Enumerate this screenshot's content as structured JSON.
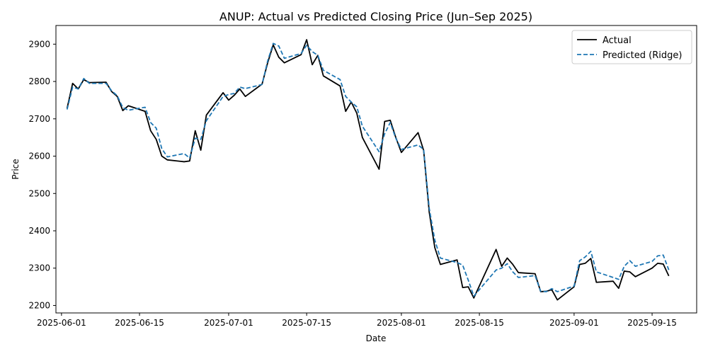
{
  "chart_data": {
    "type": "line",
    "title": "ANUP: Actual vs Predicted Closing Price (Jun–Sep 2025)",
    "xlabel": "Date",
    "ylabel": "Price",
    "xlim": [
      "2025-05-31",
      "2025-09-23"
    ],
    "ylim": [
      2180,
      2950
    ],
    "x_ticks": [
      "2025-06-01",
      "2025-06-15",
      "2025-07-01",
      "2025-07-15",
      "2025-08-01",
      "2025-08-15",
      "2025-09-01",
      "2025-09-15"
    ],
    "y_ticks": [
      2200,
      2300,
      2400,
      2500,
      2600,
      2700,
      2800,
      2900
    ],
    "grid": false,
    "legend_position": "top-right",
    "x": [
      "2025-06-02",
      "2025-06-03",
      "2025-06-04",
      "2025-06-05",
      "2025-06-06",
      "2025-06-09",
      "2025-06-10",
      "2025-06-11",
      "2025-06-12",
      "2025-06-13",
      "2025-06-16",
      "2025-06-17",
      "2025-06-18",
      "2025-06-19",
      "2025-06-20",
      "2025-06-23",
      "2025-06-24",
      "2025-06-25",
      "2025-06-26",
      "2025-06-27",
      "2025-06-30",
      "2025-07-01",
      "2025-07-02",
      "2025-07-03",
      "2025-07-04",
      "2025-07-07",
      "2025-07-08",
      "2025-07-09",
      "2025-07-10",
      "2025-07-11",
      "2025-07-14",
      "2025-07-15",
      "2025-07-16",
      "2025-07-17",
      "2025-07-18",
      "2025-07-21",
      "2025-07-22",
      "2025-07-23",
      "2025-07-24",
      "2025-07-25",
      "2025-07-28",
      "2025-07-29",
      "2025-07-30",
      "2025-07-31",
      "2025-08-01",
      "2025-08-04",
      "2025-08-05",
      "2025-08-06",
      "2025-08-07",
      "2025-08-08",
      "2025-08-11",
      "2025-08-12",
      "2025-08-13",
      "2025-08-14",
      "2025-08-18",
      "2025-08-19",
      "2025-08-20",
      "2025-08-21",
      "2025-08-22",
      "2025-08-25",
      "2025-08-26",
      "2025-08-27",
      "2025-08-28",
      "2025-08-29",
      "2025-09-01",
      "2025-09-02",
      "2025-09-03",
      "2025-09-04",
      "2025-09-05",
      "2025-09-08",
      "2025-09-09",
      "2025-09-10",
      "2025-09-11",
      "2025-09-12",
      "2025-09-15",
      "2025-09-16",
      "2025-09-17",
      "2025-09-18"
    ],
    "series": [
      {
        "name": "Actual",
        "color": "#000000",
        "style": "solid",
        "values": [
          2728,
          2795,
          2780,
          2805,
          2797,
          2798,
          2773,
          2760,
          2722,
          2735,
          2720,
          2668,
          2645,
          2600,
          2590,
          2585,
          2587,
          2668,
          2616,
          2710,
          2770,
          2750,
          2763,
          2780,
          2760,
          2793,
          2850,
          2898,
          2865,
          2850,
          2872,
          2912,
          2845,
          2870,
          2815,
          2788,
          2720,
          2745,
          2715,
          2650,
          2565,
          2693,
          2696,
          2650,
          2610,
          2663,
          2615,
          2450,
          2355,
          2310,
          2322,
          2248,
          2250,
          2220,
          2350,
          2305,
          2327,
          2310,
          2288,
          2285,
          2237,
          2238,
          2242,
          2215,
          2250,
          2310,
          2313,
          2326,
          2262,
          2265,
          2246,
          2292,
          2290,
          2277,
          2300,
          2313,
          2311,
          2279
        ]
      },
      {
        "name": "Predicted (Ridge)",
        "color": "#1f77b4",
        "style": "dashed",
        "values": [
          2725,
          2785,
          2780,
          2808,
          2795,
          2795,
          2775,
          2762,
          2730,
          2723,
          2731,
          2690,
          2675,
          2620,
          2598,
          2607,
          2595,
          2648,
          2645,
          2695,
          2760,
          2765,
          2768,
          2785,
          2781,
          2792,
          2855,
          2902,
          2895,
          2862,
          2875,
          2897,
          2880,
          2870,
          2830,
          2805,
          2760,
          2745,
          2732,
          2680,
          2612,
          2660,
          2690,
          2648,
          2618,
          2630,
          2618,
          2460,
          2375,
          2327,
          2315,
          2308,
          2268,
          2225,
          2295,
          2300,
          2312,
          2290,
          2275,
          2280,
          2238,
          2237,
          2245,
          2237,
          2252,
          2320,
          2330,
          2345,
          2290,
          2275,
          2270,
          2305,
          2320,
          2305,
          2318,
          2333,
          2335,
          2295
        ]
      }
    ]
  }
}
